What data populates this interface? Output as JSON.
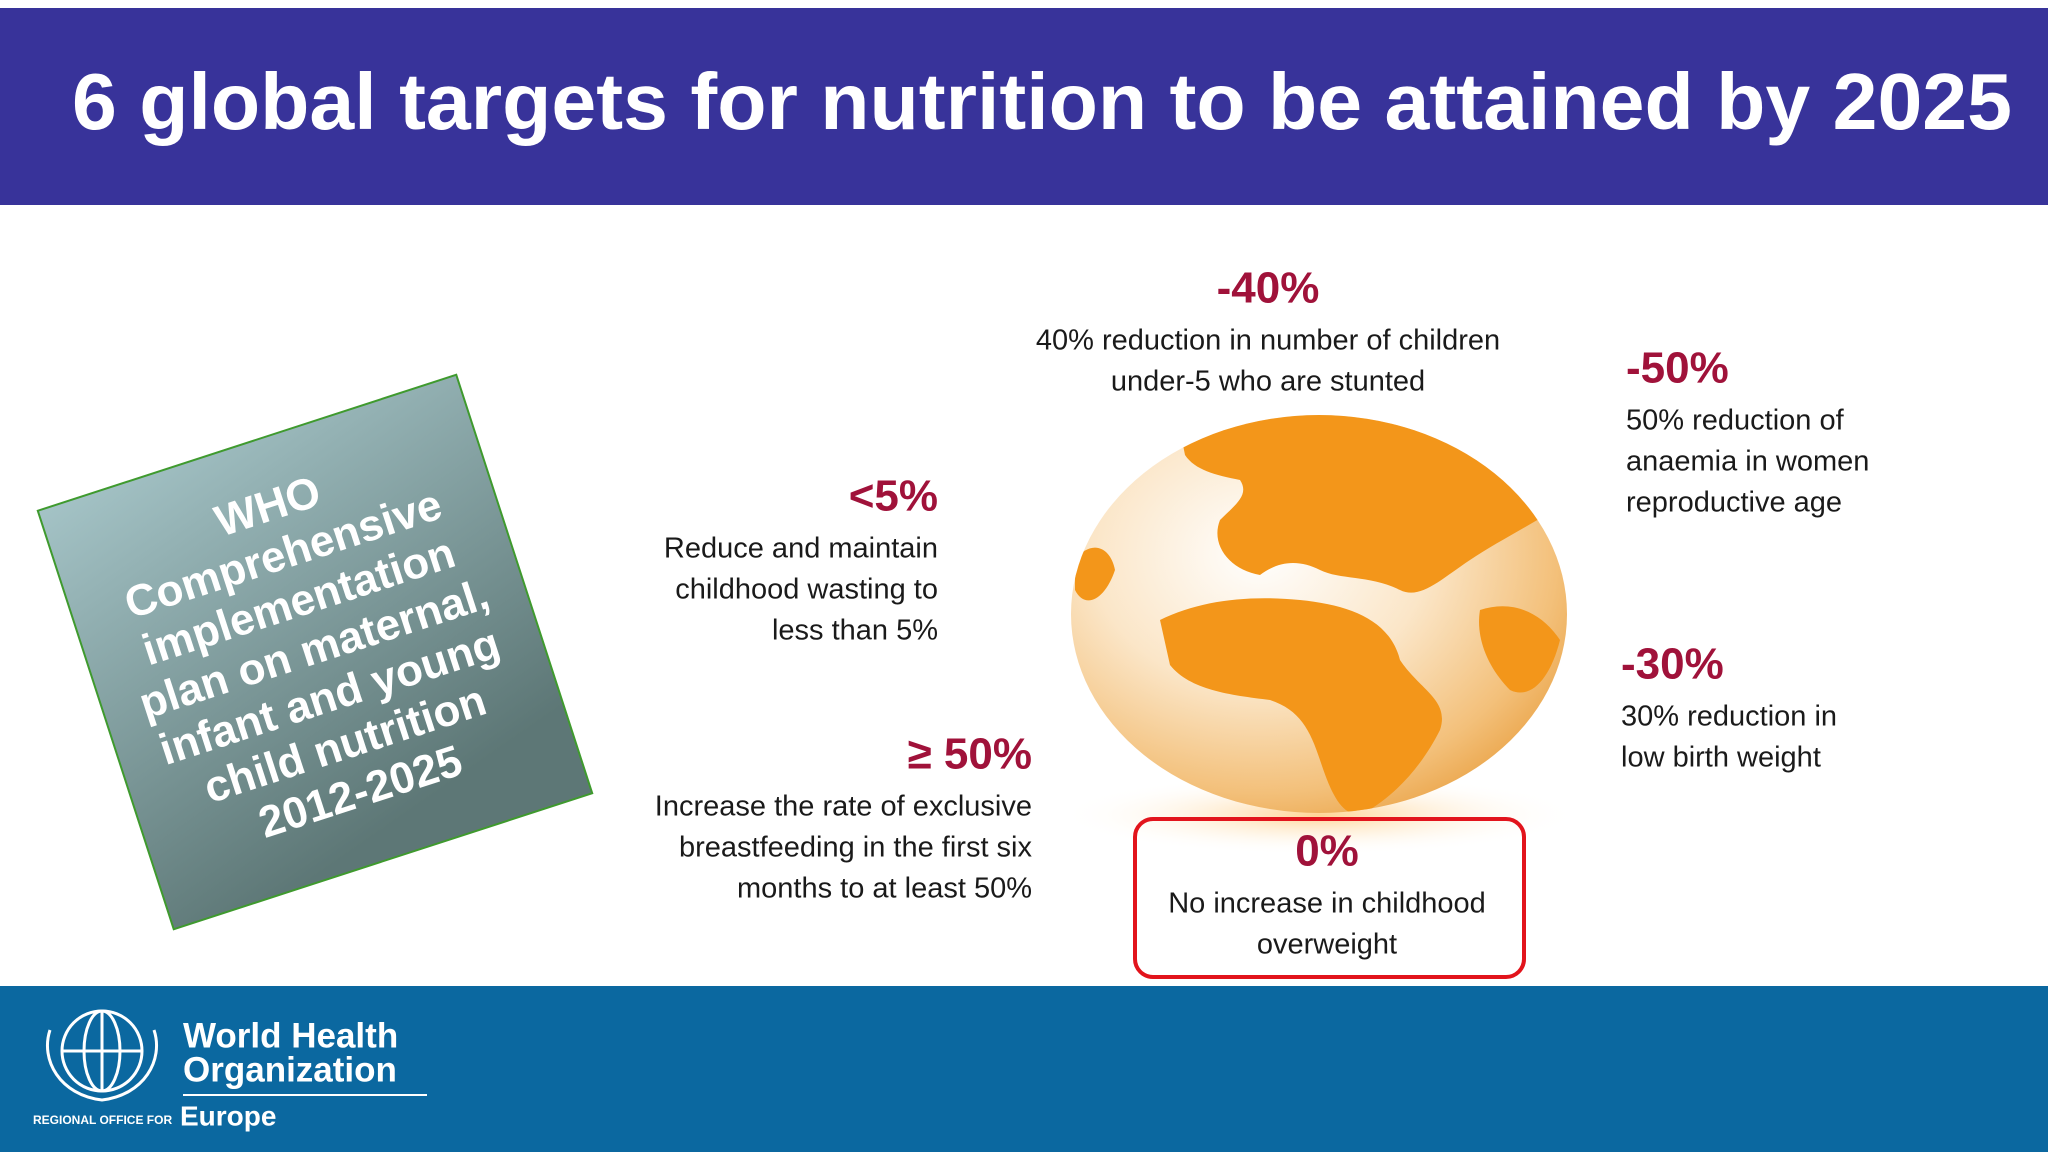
{
  "header": {
    "title": "6 global targets for nutrition to be attained by 2025"
  },
  "plan_box": {
    "lines": [
      "WHO",
      "Comprehensive",
      "implementation",
      "plan on maternal,",
      "infant and young",
      "child nutrition",
      "2012-2025"
    ]
  },
  "targets": [
    {
      "figure": "-40%",
      "description": [
        "40% reduction in number of children",
        "under-5 who are stunted"
      ]
    },
    {
      "figure": "-50%",
      "description": [
        "50% reduction of",
        "anaemia in women",
        "reproductive age"
      ]
    },
    {
      "figure": "<5%",
      "description": [
        "Reduce and maintain",
        "childhood wasting to",
        "less than 5%"
      ]
    },
    {
      "figure": "-30%",
      "description": [
        "30% reduction in",
        "low birth weight"
      ]
    },
    {
      "figure": "≥ 50%",
      "description": [
        "Increase the rate of exclusive",
        "breastfeeding in the first six",
        "months to at least 50%"
      ]
    },
    {
      "figure": "0%",
      "description": [
        "No increase in childhood",
        "overweight"
      ]
    }
  ],
  "footer": {
    "organization": [
      "World Health",
      "Organization"
    ],
    "office_prefix": "REGIONAL OFFICE FOR",
    "office": "Europe"
  }
}
